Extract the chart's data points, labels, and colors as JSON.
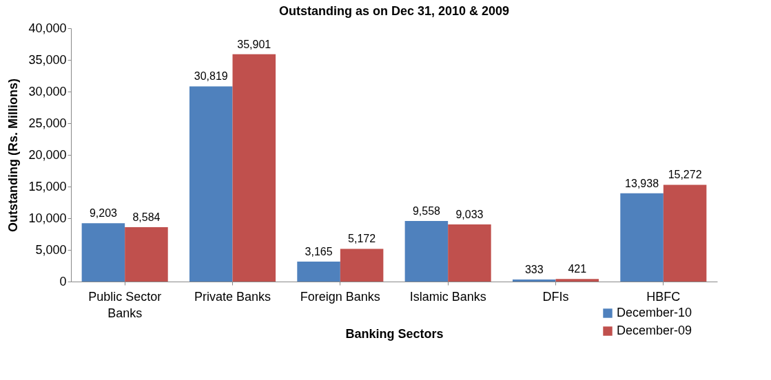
{
  "chart_data": {
    "type": "bar",
    "title": "Outstanding as on Dec 31, 2010 & 2009",
    "xlabel": "Banking Sectors",
    "ylabel": "Outstanding (Rs. Millions)",
    "categories": [
      "Public Sector Banks",
      "Private Banks",
      "Foreign Banks",
      "Islamic Banks",
      "DFIs",
      "HBFC"
    ],
    "series": [
      {
        "name": "December-10",
        "color": "#4f81bd",
        "values": [
          9203,
          30819,
          3165,
          9558,
          333,
          13938
        ],
        "value_labels": [
          "9,203",
          "30,819",
          "3,165",
          "9,558",
          "333",
          "13,938"
        ]
      },
      {
        "name": "December-09",
        "color": "#c0504d",
        "values": [
          8584,
          35901,
          5172,
          9033,
          421,
          15272
        ],
        "value_labels": [
          "8,584",
          "35,901",
          "5,172",
          "9,033",
          "421",
          "15,272"
        ]
      }
    ],
    "ylim": [
      0,
      40000
    ],
    "yticks": [
      0,
      {
        "value": 5000,
        "label": "5,000"
      },
      {
        "value": 10000,
        "label": "10,000"
      },
      {
        "value": 15000,
        "label": "15,000"
      },
      {
        "value": 20000,
        "label": "20,000"
      },
      {
        "value": 25000,
        "label": "25,000"
      },
      {
        "value": 30000,
        "label": "30,000"
      },
      {
        "value": 35000,
        "label": "35,000"
      },
      {
        "value": 40000,
        "label": "40,000"
      }
    ],
    "legend": "bottom right",
    "grid": false
  }
}
